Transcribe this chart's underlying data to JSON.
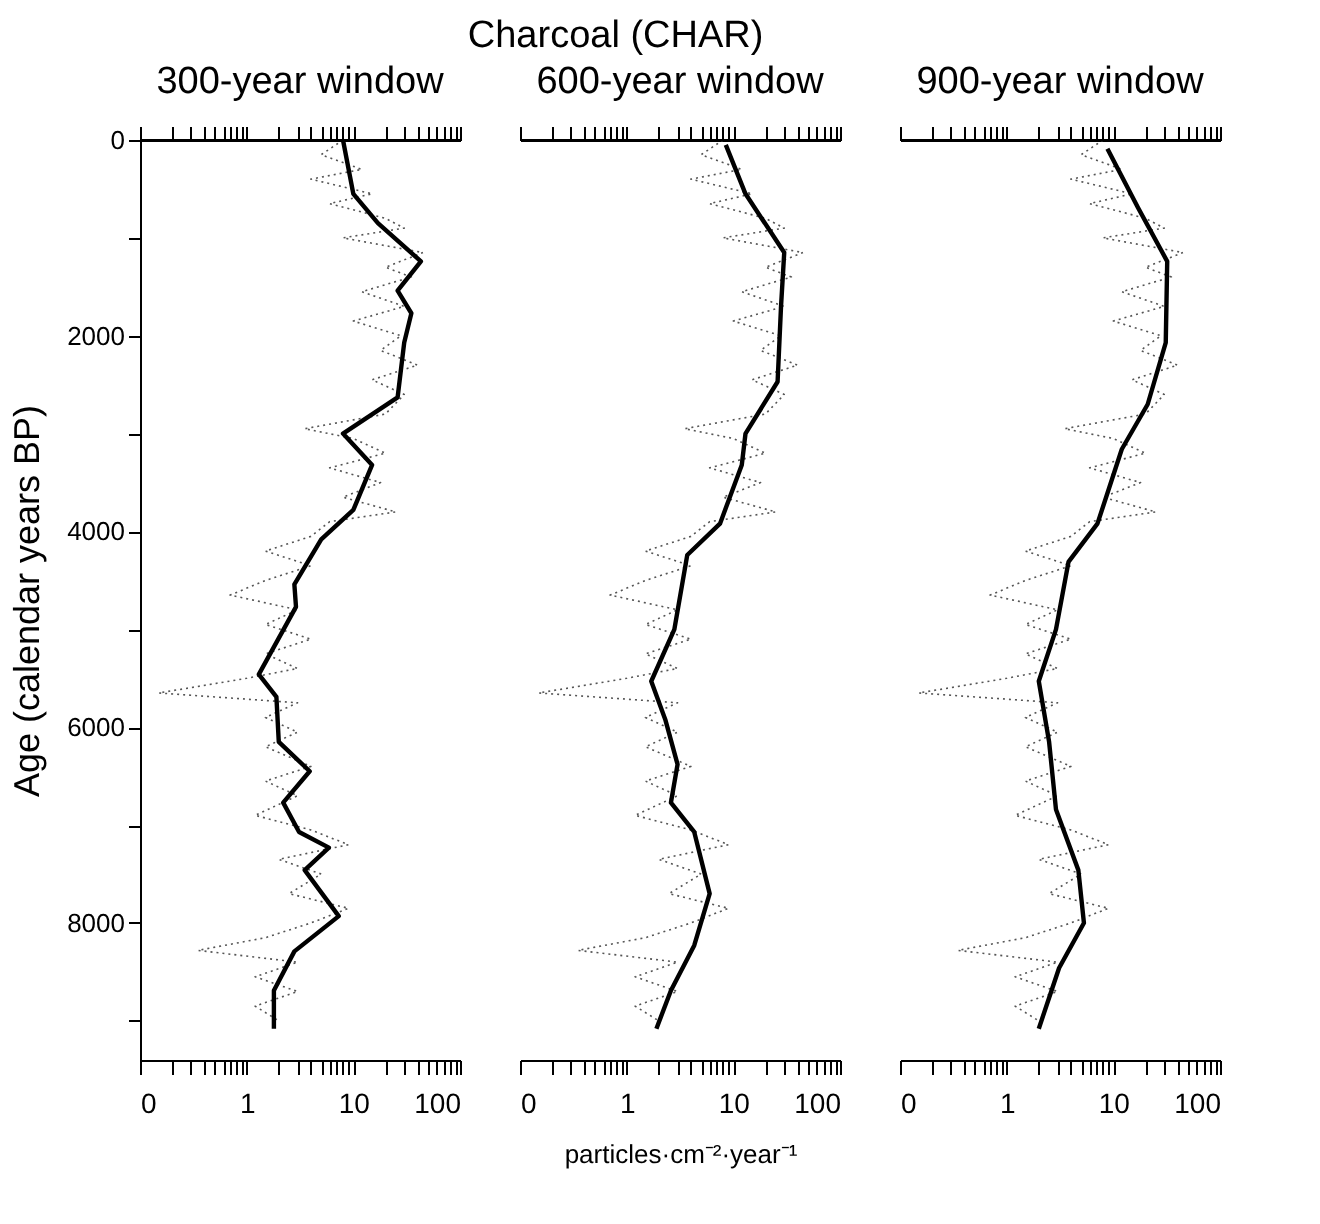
{
  "chart_data": [
    {
      "type": "line",
      "title": "300-year window",
      "ylabel": "Age (calendar years BP)",
      "log": "x",
      "grid": false,
      "tick_labels": "xy",
      "xlim": [
        0.1,
        100
      ],
      "xticks": [
        {
          "value": 0.1,
          "label": "0"
        },
        {
          "value": 0.2,
          "label": null
        },
        {
          "value": 0.3,
          "label": null
        },
        {
          "value": 0.4,
          "label": null
        },
        {
          "value": 0.5,
          "label": null
        },
        {
          "value": 0.6,
          "label": null
        },
        {
          "value": 0.7,
          "label": null
        },
        {
          "value": 0.8,
          "label": null
        },
        {
          "value": 0.9,
          "label": null
        },
        1,
        {
          "value": 2,
          "label": null
        },
        {
          "value": 3,
          "label": null
        },
        {
          "value": 4,
          "label": null
        },
        {
          "value": 5,
          "label": null
        },
        {
          "value": 6,
          "label": null
        },
        {
          "value": 7,
          "label": null
        },
        {
          "value": 8,
          "label": null
        },
        {
          "value": 9,
          "label": null
        },
        10,
        {
          "value": 20,
          "label": null
        },
        {
          "value": 30,
          "label": null
        },
        {
          "value": 40,
          "label": null
        },
        {
          "value": 50,
          "label": null
        },
        {
          "value": 60,
          "label": null
        },
        {
          "value": 70,
          "label": null
        },
        {
          "value": 80,
          "label": null
        },
        {
          "value": 90,
          "label": null
        },
        100
      ],
      "ylim": [
        9400,
        0
      ],
      "yticks": [
        0,
        {
          "value": 1000,
          "label": null
        },
        2000,
        {
          "value": 3000,
          "label": null
        },
        4000,
        {
          "value": 5000,
          "label": null
        },
        6000,
        {
          "value": 7000,
          "label": null
        },
        8000,
        {
          "value": 9000,
          "label": null
        }
      ],
      "series": [
        {
          "color": "#555555",
          "line_style": "dotted",
          "values": [
            0,
            150,
            300,
            400,
            550,
            650,
            800,
            900,
            1000,
            1150,
            1300,
            1400,
            1550,
            1700,
            1850,
            2000,
            2150,
            2300,
            2450,
            2600,
            2800,
            2950,
            3050,
            3200,
            3350,
            3500,
            3650,
            3800,
            3900,
            4050,
            4200,
            4350,
            4500,
            4650,
            4800,
            4950,
            5100,
            5250,
            5400,
            5500,
            5650,
            5750,
            5900,
            6050,
            6200,
            6400,
            6550,
            6700,
            6900,
            7050,
            7200,
            7350,
            7500,
            7700,
            7850,
            8000,
            8150,
            8280,
            8400,
            8550,
            8700,
            8850,
            9000
          ],
          "x": [
            8,
            5,
            12,
            4,
            15,
            6,
            20,
            30,
            8,
            45,
            20,
            35,
            12,
            30,
            10,
            28,
            18,
            40,
            15,
            30,
            20,
            3.5,
            10,
            20,
            6,
            18,
            8,
            25,
            6,
            4,
            1.5,
            4,
            1.5,
            0.7,
            3,
            1.5,
            4,
            1.5,
            3,
            1,
            0.15,
            3,
            1.5,
            3,
            1.5,
            4,
            1.5,
            3,
            1.2,
            4,
            9,
            2,
            5,
            2.5,
            9,
            4,
            1.5,
            0.35,
            3,
            1.2,
            3,
            1.2,
            2
          ]
        },
        {
          "color": "#000000",
          "line_style": "solid",
          "values": [
            0,
            550,
            850,
            1240,
            1540,
            1770,
            2070,
            2630,
            3000,
            3320,
            3780,
            4080,
            4540,
            4770,
            5460,
            5690,
            6150,
            6450,
            6770,
            7070,
            7230,
            7460,
            7930,
            8290,
            8690,
            9080
          ],
          "x": [
            8,
            10,
            17,
            43,
            26,
            35,
            30,
            26,
            8,
            15,
            10,
            5,
            2.8,
            2.9,
            1.3,
            1.9,
            2,
            3.9,
            2.2,
            3.1,
            5.9,
            3.5,
            7.3,
            2.8,
            1.8,
            1.8
          ]
        }
      ]
    },
    {
      "type": "line",
      "title": "600-year window",
      "xlabel": "particles·cm⁻²·year⁻¹",
      "annotations": [
        "Charcoal (CHAR)"
      ],
      "log": "x",
      "grid": false,
      "tick_labels": "x",
      "xlim": [
        0.1,
        100
      ],
      "xticks": [
        {
          "value": 0.1,
          "label": "0"
        },
        {
          "value": 0.2,
          "label": null
        },
        {
          "value": 0.3,
          "label": null
        },
        {
          "value": 0.4,
          "label": null
        },
        {
          "value": 0.5,
          "label": null
        },
        {
          "value": 0.6,
          "label": null
        },
        {
          "value": 0.7,
          "label": null
        },
        {
          "value": 0.8,
          "label": null
        },
        {
          "value": 0.9,
          "label": null
        },
        1,
        {
          "value": 2,
          "label": null
        },
        {
          "value": 3,
          "label": null
        },
        {
          "value": 4,
          "label": null
        },
        {
          "value": 5,
          "label": null
        },
        {
          "value": 6,
          "label": null
        },
        {
          "value": 7,
          "label": null
        },
        {
          "value": 8,
          "label": null
        },
        {
          "value": 9,
          "label": null
        },
        10,
        {
          "value": 20,
          "label": null
        },
        {
          "value": 30,
          "label": null
        },
        {
          "value": 40,
          "label": null
        },
        {
          "value": 50,
          "label": null
        },
        {
          "value": 60,
          "label": null
        },
        {
          "value": 70,
          "label": null
        },
        {
          "value": 80,
          "label": null
        },
        {
          "value": 90,
          "label": null
        },
        100
      ],
      "ylim": [
        9400,
        0
      ],
      "series": [
        {
          "color": "#555555",
          "line_style": "dotted",
          "values": [
            0,
            150,
            300,
            400,
            550,
            650,
            800,
            900,
            1000,
            1150,
            1300,
            1400,
            1550,
            1700,
            1850,
            2000,
            2150,
            2300,
            2450,
            2600,
            2800,
            2950,
            3050,
            3200,
            3350,
            3500,
            3650,
            3800,
            3900,
            4050,
            4200,
            4350,
            4500,
            4650,
            4800,
            4950,
            5100,
            5250,
            5400,
            5500,
            5650,
            5750,
            5900,
            6050,
            6200,
            6400,
            6550,
            6700,
            6900,
            7050,
            7200,
            7350,
            7500,
            7700,
            7850,
            8000,
            8150,
            8280,
            8400,
            8550,
            8700,
            8850,
            9000
          ],
          "x": [
            8,
            5,
            12,
            4,
            15,
            6,
            20,
            30,
            8,
            45,
            20,
            35,
            12,
            30,
            10,
            28,
            18,
            40,
            15,
            30,
            20,
            3.5,
            10,
            20,
            6,
            18,
            8,
            25,
            6,
            4,
            1.5,
            4,
            1.5,
            0.7,
            3,
            1.5,
            4,
            1.5,
            3,
            1,
            0.15,
            3,
            1.5,
            3,
            1.5,
            4,
            1.5,
            3,
            1.2,
            4,
            9,
            2,
            5,
            2.5,
            9,
            4,
            1.5,
            0.35,
            3,
            1.2,
            3,
            1.2,
            2
          ]
        },
        {
          "color": "#000000",
          "line_style": "solid",
          "values": [
            50,
            550,
            1150,
            1700,
            2470,
            3000,
            3320,
            3920,
            4240,
            5000,
            5530,
            5920,
            6380,
            6770,
            7070,
            7700,
            8230,
            8690,
            9080
          ],
          "x": [
            8.5,
            13,
            30,
            28,
            26,
            13,
            12,
            7.5,
            3.7,
            2.8,
            1.7,
            2.3,
            3,
            2.6,
            4.3,
            6,
            4.3,
            2.6,
            1.9
          ]
        }
      ]
    },
    {
      "type": "line",
      "title": "900-year window",
      "log": "x",
      "grid": false,
      "tick_labels": "x",
      "xlim": [
        0.1,
        100
      ],
      "xticks": [
        {
          "value": 0.1,
          "label": "0"
        },
        {
          "value": 0.2,
          "label": null
        },
        {
          "value": 0.3,
          "label": null
        },
        {
          "value": 0.4,
          "label": null
        },
        {
          "value": 0.5,
          "label": null
        },
        {
          "value": 0.6,
          "label": null
        },
        {
          "value": 0.7,
          "label": null
        },
        {
          "value": 0.8,
          "label": null
        },
        {
          "value": 0.9,
          "label": null
        },
        1,
        {
          "value": 2,
          "label": null
        },
        {
          "value": 3,
          "label": null
        },
        {
          "value": 4,
          "label": null
        },
        {
          "value": 5,
          "label": null
        },
        {
          "value": 6,
          "label": null
        },
        {
          "value": 7,
          "label": null
        },
        {
          "value": 8,
          "label": null
        },
        {
          "value": 9,
          "label": null
        },
        10,
        {
          "value": 20,
          "label": null
        },
        {
          "value": 30,
          "label": null
        },
        {
          "value": 40,
          "label": null
        },
        {
          "value": 50,
          "label": null
        },
        {
          "value": 60,
          "label": null
        },
        {
          "value": 70,
          "label": null
        },
        {
          "value": 80,
          "label": null
        },
        {
          "value": 90,
          "label": null
        },
        100
      ],
      "ylim": [
        9400,
        0
      ],
      "series": [
        {
          "color": "#555555",
          "line_style": "dotted",
          "values": [
            0,
            150,
            300,
            400,
            550,
            650,
            800,
            900,
            1000,
            1150,
            1300,
            1400,
            1550,
            1700,
            1850,
            2000,
            2150,
            2300,
            2450,
            2600,
            2800,
            2950,
            3050,
            3200,
            3350,
            3500,
            3650,
            3800,
            3900,
            4050,
            4200,
            4350,
            4500,
            4650,
            4800,
            4950,
            5100,
            5250,
            5400,
            5500,
            5650,
            5750,
            5900,
            6050,
            6200,
            6400,
            6550,
            6700,
            6900,
            7050,
            7200,
            7350,
            7500,
            7700,
            7850,
            8000,
            8150,
            8280,
            8400,
            8550,
            8700,
            8850,
            9000
          ],
          "x": [
            8,
            5,
            12,
            4,
            15,
            6,
            20,
            30,
            8,
            45,
            20,
            35,
            12,
            30,
            10,
            28,
            18,
            40,
            15,
            30,
            20,
            3.5,
            10,
            20,
            6,
            18,
            8,
            25,
            6,
            4,
            1.5,
            4,
            1.5,
            0.7,
            3,
            1.5,
            4,
            1.5,
            3,
            1,
            0.15,
            3,
            1.5,
            3,
            1.5,
            4,
            1.5,
            3,
            1.2,
            4,
            9,
            2,
            5,
            2.5,
            9,
            4,
            1.5,
            0.35,
            3,
            1.2,
            3,
            1.2,
            2
          ]
        },
        {
          "color": "#000000",
          "line_style": "solid",
          "values": [
            90,
            690,
            1240,
            2070,
            2700,
            3160,
            3920,
            4310,
            5000,
            5530,
            6150,
            6840,
            7460,
            8000,
            8460,
            9080
          ],
          "x": [
            8.8,
            17,
            32,
            31,
            21,
            12,
            7.1,
            3.8,
            2.9,
            2,
            2.5,
            2.9,
            4.7,
            5.3,
            3.1,
            2
          ]
        }
      ]
    }
  ]
}
